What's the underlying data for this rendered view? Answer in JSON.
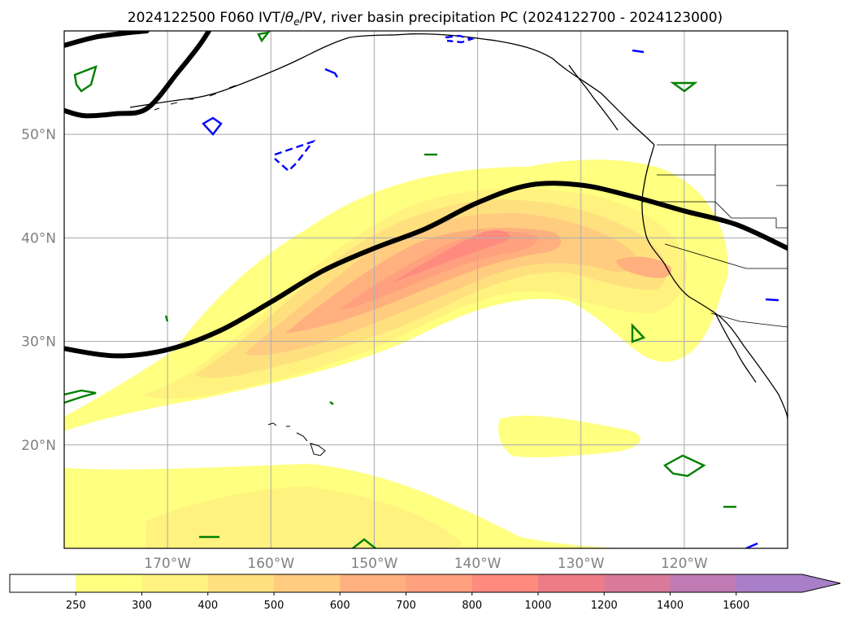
{
  "figure": {
    "title_prefix": "2024122500 F060 IVT/",
    "title_theta": "θ",
    "title_sub": "e",
    "title_suffix": "/PV, river basin precipitation PC (2024122700 - 2024123000)"
  },
  "map": {
    "lon_range": [
      -180,
      -110
    ],
    "lat_range": [
      10,
      60
    ],
    "lon_ticks": [
      {
        "lon": -170,
        "label": "170°W"
      },
      {
        "lon": -160,
        "label": "160°W"
      },
      {
        "lon": -150,
        "label": "150°W"
      },
      {
        "lon": -140,
        "label": "140°W"
      },
      {
        "lon": -130,
        "label": "130°W"
      },
      {
        "lon": -120,
        "label": "120°W"
      }
    ],
    "lat_ticks": [
      {
        "lat": 20,
        "label": "20°N"
      },
      {
        "lat": 30,
        "label": "30°N"
      },
      {
        "lat": 40,
        "label": "40°N"
      },
      {
        "lat": 50,
        "label": "50°N"
      }
    ],
    "grid": true,
    "jet_axis": [
      [
        -180,
        29.3
      ],
      [
        -175,
        28.6
      ],
      [
        -170,
        29.2
      ],
      [
        -165,
        31
      ],
      [
        -160,
        33.8
      ],
      [
        -155,
        36.8
      ],
      [
        -150,
        39
      ],
      [
        -145,
        40.9
      ],
      [
        -140,
        43.4
      ],
      [
        -135,
        45.1
      ],
      [
        -130,
        45.1
      ],
      [
        -125,
        44
      ],
      [
        -120,
        42.6
      ],
      [
        -115,
        41.3
      ],
      [
        -110,
        39
      ]
    ],
    "pv_contours_upper_left": [
      [
        [
          -180,
          58.6
        ],
        [
          -177,
          59.4
        ],
        [
          -174,
          59.8
        ],
        [
          -172,
          60
        ]
      ],
      [
        [
          -180,
          52.3
        ],
        [
          -178,
          51.8
        ],
        [
          -175,
          52
        ],
        [
          -172,
          52.5
        ],
        [
          -169,
          56
        ],
        [
          -167,
          58.5
        ],
        [
          -166,
          60
        ]
      ]
    ]
  },
  "colorbar": {
    "levels": [
      "250",
      "300",
      "400",
      "500",
      "600",
      "700",
      "800",
      "1000",
      "1200",
      "1400",
      "1600"
    ],
    "colors": [
      "#ffffff",
      "#ffff80",
      "#fff27f",
      "#ffe07f",
      "#ffcc80",
      "#ffb07e",
      "#ffa07e",
      "#ff8a7e",
      "#ee7c86",
      "#d97a9a",
      "#c07ab4",
      "#a87fc8"
    ],
    "extend": "max"
  },
  "colors": {
    "pv_negative": "#0000ff",
    "pv_positive": "#008000",
    "jet": "#000000",
    "grid": "#b0b0b0"
  }
}
